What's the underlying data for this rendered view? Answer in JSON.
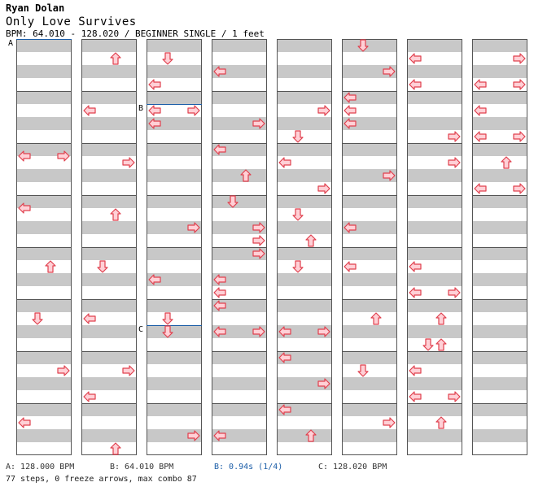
{
  "header": {
    "artist": "Ryan Dolan",
    "title": "Only Love Survives",
    "meta": "BPM: 64.010 - 128.020 / BEGINNER SINGLE / 1 feet"
  },
  "chart_data": {
    "type": "step_chart",
    "difficulty": "BEGINNER",
    "style": "SINGLE",
    "feet": 1,
    "columns": 8,
    "measures_per_column": 8,
    "lanes": [
      "left",
      "down",
      "up",
      "right"
    ],
    "markers": [
      {
        "label": "A",
        "column": 0,
        "measure": 0,
        "beat": 0
      },
      {
        "label": "B",
        "column": 2,
        "measure": 1,
        "beat": 1
      },
      {
        "label": "C",
        "column": 2,
        "measure": 5,
        "beat": 2
      }
    ],
    "notes": [
      {
        "c": 0,
        "m": 2,
        "b": 1,
        "lane": "left"
      },
      {
        "c": 0,
        "m": 2,
        "b": 1,
        "lane": "right"
      },
      {
        "c": 0,
        "m": 3,
        "b": 1,
        "lane": "left"
      },
      {
        "c": 0,
        "m": 4,
        "b": 1.5,
        "lane": "up"
      },
      {
        "c": 0,
        "m": 5,
        "b": 1.5,
        "lane": "down"
      },
      {
        "c": 0,
        "m": 6,
        "b": 1.5,
        "lane": "right"
      },
      {
        "c": 0,
        "m": 7,
        "b": 1.5,
        "lane": "left"
      },
      {
        "c": 1,
        "m": 0,
        "b": 1.5,
        "lane": "up"
      },
      {
        "c": 1,
        "m": 1,
        "b": 1.5,
        "lane": "left"
      },
      {
        "c": 1,
        "m": 2,
        "b": 1.5,
        "lane": "right"
      },
      {
        "c": 1,
        "m": 3,
        "b": 1.5,
        "lane": "up"
      },
      {
        "c": 1,
        "m": 4,
        "b": 1.5,
        "lane": "down"
      },
      {
        "c": 1,
        "m": 5,
        "b": 1.5,
        "lane": "left"
      },
      {
        "c": 1,
        "m": 6,
        "b": 1.5,
        "lane": "right"
      },
      {
        "c": 1,
        "m": 6,
        "b": 3.5,
        "lane": "left"
      },
      {
        "c": 1,
        "m": 7,
        "b": 3.5,
        "lane": "up"
      },
      {
        "c": 2,
        "m": 0,
        "b": 1.5,
        "lane": "down"
      },
      {
        "c": 2,
        "m": 0,
        "b": 3.5,
        "lane": "left"
      },
      {
        "c": 2,
        "m": 1,
        "b": 1.5,
        "lane": "left"
      },
      {
        "c": 2,
        "m": 1,
        "b": 1.5,
        "lane": "right"
      },
      {
        "c": 2,
        "m": 1,
        "b": 2.5,
        "lane": "left"
      },
      {
        "c": 2,
        "m": 3,
        "b": 2.5,
        "lane": "right"
      },
      {
        "c": 2,
        "m": 4,
        "b": 2.5,
        "lane": "left"
      },
      {
        "c": 2,
        "m": 5,
        "b": 1.5,
        "lane": "down"
      },
      {
        "c": 2,
        "m": 5,
        "b": 2.5,
        "lane": "down"
      },
      {
        "c": 2,
        "m": 7,
        "b": 2.5,
        "lane": "right"
      },
      {
        "c": 3,
        "m": 0,
        "b": 2.5,
        "lane": "left"
      },
      {
        "c": 3,
        "m": 1,
        "b": 2.5,
        "lane": "right"
      },
      {
        "c": 3,
        "m": 2,
        "b": 0.5,
        "lane": "left"
      },
      {
        "c": 3,
        "m": 2,
        "b": 2.5,
        "lane": "up"
      },
      {
        "c": 3,
        "m": 3,
        "b": 0.5,
        "lane": "down"
      },
      {
        "c": 3,
        "m": 3,
        "b": 2.5,
        "lane": "right"
      },
      {
        "c": 3,
        "m": 3,
        "b": 3.5,
        "lane": "right"
      },
      {
        "c": 3,
        "m": 4,
        "b": 0.5,
        "lane": "right"
      },
      {
        "c": 3,
        "m": 4,
        "b": 2.5,
        "lane": "left"
      },
      {
        "c": 3,
        "m": 4,
        "b": 3.5,
        "lane": "left"
      },
      {
        "c": 3,
        "m": 5,
        "b": 0.5,
        "lane": "left"
      },
      {
        "c": 3,
        "m": 5,
        "b": 2.5,
        "lane": "left"
      },
      {
        "c": 3,
        "m": 5,
        "b": 2.5,
        "lane": "right"
      },
      {
        "c": 3,
        "m": 7,
        "b": 2.5,
        "lane": "left"
      },
      {
        "c": 4,
        "m": 1,
        "b": 1.5,
        "lane": "right"
      },
      {
        "c": 4,
        "m": 1,
        "b": 3.5,
        "lane": "down"
      },
      {
        "c": 4,
        "m": 2,
        "b": 1.5,
        "lane": "left"
      },
      {
        "c": 4,
        "m": 2,
        "b": 3.5,
        "lane": "right"
      },
      {
        "c": 4,
        "m": 3,
        "b": 1.5,
        "lane": "down"
      },
      {
        "c": 4,
        "m": 3,
        "b": 3.5,
        "lane": "up"
      },
      {
        "c": 4,
        "m": 4,
        "b": 1.5,
        "lane": "down"
      },
      {
        "c": 4,
        "m": 5,
        "b": 2.5,
        "lane": "left"
      },
      {
        "c": 4,
        "m": 5,
        "b": 2.5,
        "lane": "right"
      },
      {
        "c": 4,
        "m": 6,
        "b": 0.5,
        "lane": "left"
      },
      {
        "c": 4,
        "m": 6,
        "b": 2.5,
        "lane": "right"
      },
      {
        "c": 4,
        "m": 7,
        "b": 0.5,
        "lane": "left"
      },
      {
        "c": 4,
        "m": 7,
        "b": 2.5,
        "lane": "up"
      },
      {
        "c": 5,
        "m": 0,
        "b": 0.5,
        "lane": "down"
      },
      {
        "c": 5,
        "m": 0,
        "b": 2.5,
        "lane": "right"
      },
      {
        "c": 5,
        "m": 1,
        "b": 0.5,
        "lane": "left"
      },
      {
        "c": 5,
        "m": 1,
        "b": 1.5,
        "lane": "left"
      },
      {
        "c": 5,
        "m": 1,
        "b": 2.5,
        "lane": "left"
      },
      {
        "c": 5,
        "m": 2,
        "b": 2.5,
        "lane": "right"
      },
      {
        "c": 5,
        "m": 3,
        "b": 2.5,
        "lane": "left"
      },
      {
        "c": 5,
        "m": 4,
        "b": 1.5,
        "lane": "left"
      },
      {
        "c": 5,
        "m": 5,
        "b": 1.5,
        "lane": "up"
      },
      {
        "c": 5,
        "m": 6,
        "b": 1.5,
        "lane": "down"
      },
      {
        "c": 5,
        "m": 7,
        "b": 1.5,
        "lane": "right"
      },
      {
        "c": 6,
        "m": 0,
        "b": 1.5,
        "lane": "left"
      },
      {
        "c": 6,
        "m": 0,
        "b": 3.5,
        "lane": "left"
      },
      {
        "c": 6,
        "m": 1,
        "b": 3.5,
        "lane": "right"
      },
      {
        "c": 6,
        "m": 2,
        "b": 1.5,
        "lane": "right"
      },
      {
        "c": 6,
        "m": 4,
        "b": 1.5,
        "lane": "left"
      },
      {
        "c": 6,
        "m": 4,
        "b": 3.5,
        "lane": "left"
      },
      {
        "c": 6,
        "m": 4,
        "b": 3.5,
        "lane": "right"
      },
      {
        "c": 6,
        "m": 5,
        "b": 1.5,
        "lane": "up"
      },
      {
        "c": 6,
        "m": 5,
        "b": 3.5,
        "lane": "down"
      },
      {
        "c": 6,
        "m": 5,
        "b": 3.5,
        "lane": "up"
      },
      {
        "c": 6,
        "m": 6,
        "b": 1.5,
        "lane": "left"
      },
      {
        "c": 6,
        "m": 6,
        "b": 3.5,
        "lane": "left"
      },
      {
        "c": 6,
        "m": 6,
        "b": 3.5,
        "lane": "right"
      },
      {
        "c": 6,
        "m": 7,
        "b": 1.5,
        "lane": "up"
      },
      {
        "c": 7,
        "m": 0,
        "b": 1.5,
        "lane": "right"
      },
      {
        "c": 7,
        "m": 0,
        "b": 3.5,
        "lane": "left"
      },
      {
        "c": 7,
        "m": 0,
        "b": 3.5,
        "lane": "right"
      },
      {
        "c": 7,
        "m": 1,
        "b": 1.5,
        "lane": "left"
      },
      {
        "c": 7,
        "m": 1,
        "b": 3.5,
        "lane": "left"
      },
      {
        "c": 7,
        "m": 1,
        "b": 3.5,
        "lane": "right"
      },
      {
        "c": 7,
        "m": 2,
        "b": 1.5,
        "lane": "up"
      },
      {
        "c": 7,
        "m": 2,
        "b": 3.5,
        "lane": "left"
      },
      {
        "c": 7,
        "m": 2,
        "b": 3.5,
        "lane": "right"
      }
    ]
  },
  "footer": {
    "bpm_a": "A: 128.000 BPM",
    "bpm_b": "B: 64.010 BPM",
    "stop_b": "B: 0.94s (1/4)",
    "bpm_c": "C: 128.020 BPM",
    "summary": "77 steps, 0 freeze arrows, max combo 87"
  },
  "colors": {
    "band": "#c8c8c8",
    "border": "#555555",
    "arrow_fill": "#ffd0d6",
    "arrow_stroke": "#e0404e",
    "marker_line": "#1c5ea8"
  }
}
